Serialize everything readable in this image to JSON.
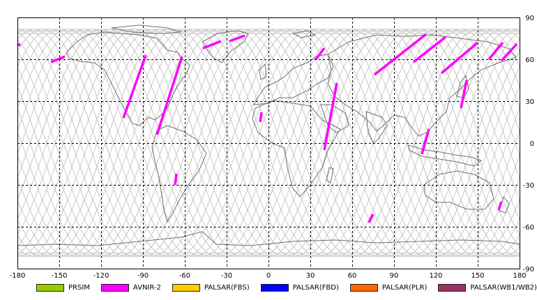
{
  "map": {
    "lon_ticks": [
      "-180",
      "-150",
      "-120",
      "-90",
      "-60",
      "-30",
      "0",
      "30",
      "60",
      "90",
      "120",
      "150",
      "180"
    ],
    "lat_ticks": [
      "90",
      "60",
      "30",
      "0",
      "-30",
      "-60",
      "-90"
    ],
    "grid_color": "#000000",
    "orbit_color": "#c8c8c8",
    "coast_color": "#707070",
    "swath_color": "#ff00ff"
  },
  "legend": [
    {
      "label": "PRSIM",
      "color": "#99cc00"
    },
    {
      "label": "AVNIR-2",
      "color": "#ff00ff"
    },
    {
      "label": "PALSAR(FBS)",
      "color": "#ffcc00"
    },
    {
      "label": "PALSAR(FBD)",
      "color": "#0000ff"
    },
    {
      "label": "PALSAR(PLR)",
      "color": "#ff6600"
    },
    {
      "label": "PALSAR(WB1/WB2)",
      "color": "#993366"
    }
  ],
  "swaths": [
    {
      "from": [
        -104,
        18
      ],
      "to": [
        -88,
        63
      ]
    },
    {
      "from": [
        -80,
        6
      ],
      "to": [
        -62,
        62
      ]
    },
    {
      "from": [
        -67,
        -30
      ],
      "to": [
        -66,
        -22
      ]
    },
    {
      "from": [
        -47,
        68
      ],
      "to": [
        -34,
        73
      ]
    },
    {
      "from": [
        -28,
        73
      ],
      "to": [
        -17,
        77
      ]
    },
    {
      "from": [
        -180,
        71
      ],
      "to": [
        -178,
        70
      ]
    },
    {
      "from": [
        -156,
        58
      ],
      "to": [
        -146,
        62
      ]
    },
    {
      "from": [
        -6,
        15
      ],
      "to": [
        -5,
        22
      ]
    },
    {
      "from": [
        34,
        60
      ],
      "to": [
        40,
        68
      ]
    },
    {
      "from": [
        40,
        -5
      ],
      "to": [
        49,
        43
      ]
    },
    {
      "from": [
        76,
        49
      ],
      "to": [
        113,
        78
      ]
    },
    {
      "from": [
        104,
        58
      ],
      "to": [
        127,
        76
      ]
    },
    {
      "from": [
        124,
        50
      ],
      "to": [
        150,
        72
      ]
    },
    {
      "from": [
        158,
        60
      ],
      "to": [
        168,
        72
      ]
    },
    {
      "from": [
        167,
        59
      ],
      "to": [
        178,
        71
      ]
    },
    {
      "from": [
        110,
        -8
      ],
      "to": [
        115,
        10
      ]
    },
    {
      "from": [
        138,
        25
      ],
      "to": [
        142,
        45
      ]
    },
    {
      "from": [
        72,
        -57
      ],
      "to": [
        75,
        -51
      ]
    },
    {
      "from": [
        165,
        -48
      ],
      "to": [
        167,
        -42
      ]
    }
  ]
}
